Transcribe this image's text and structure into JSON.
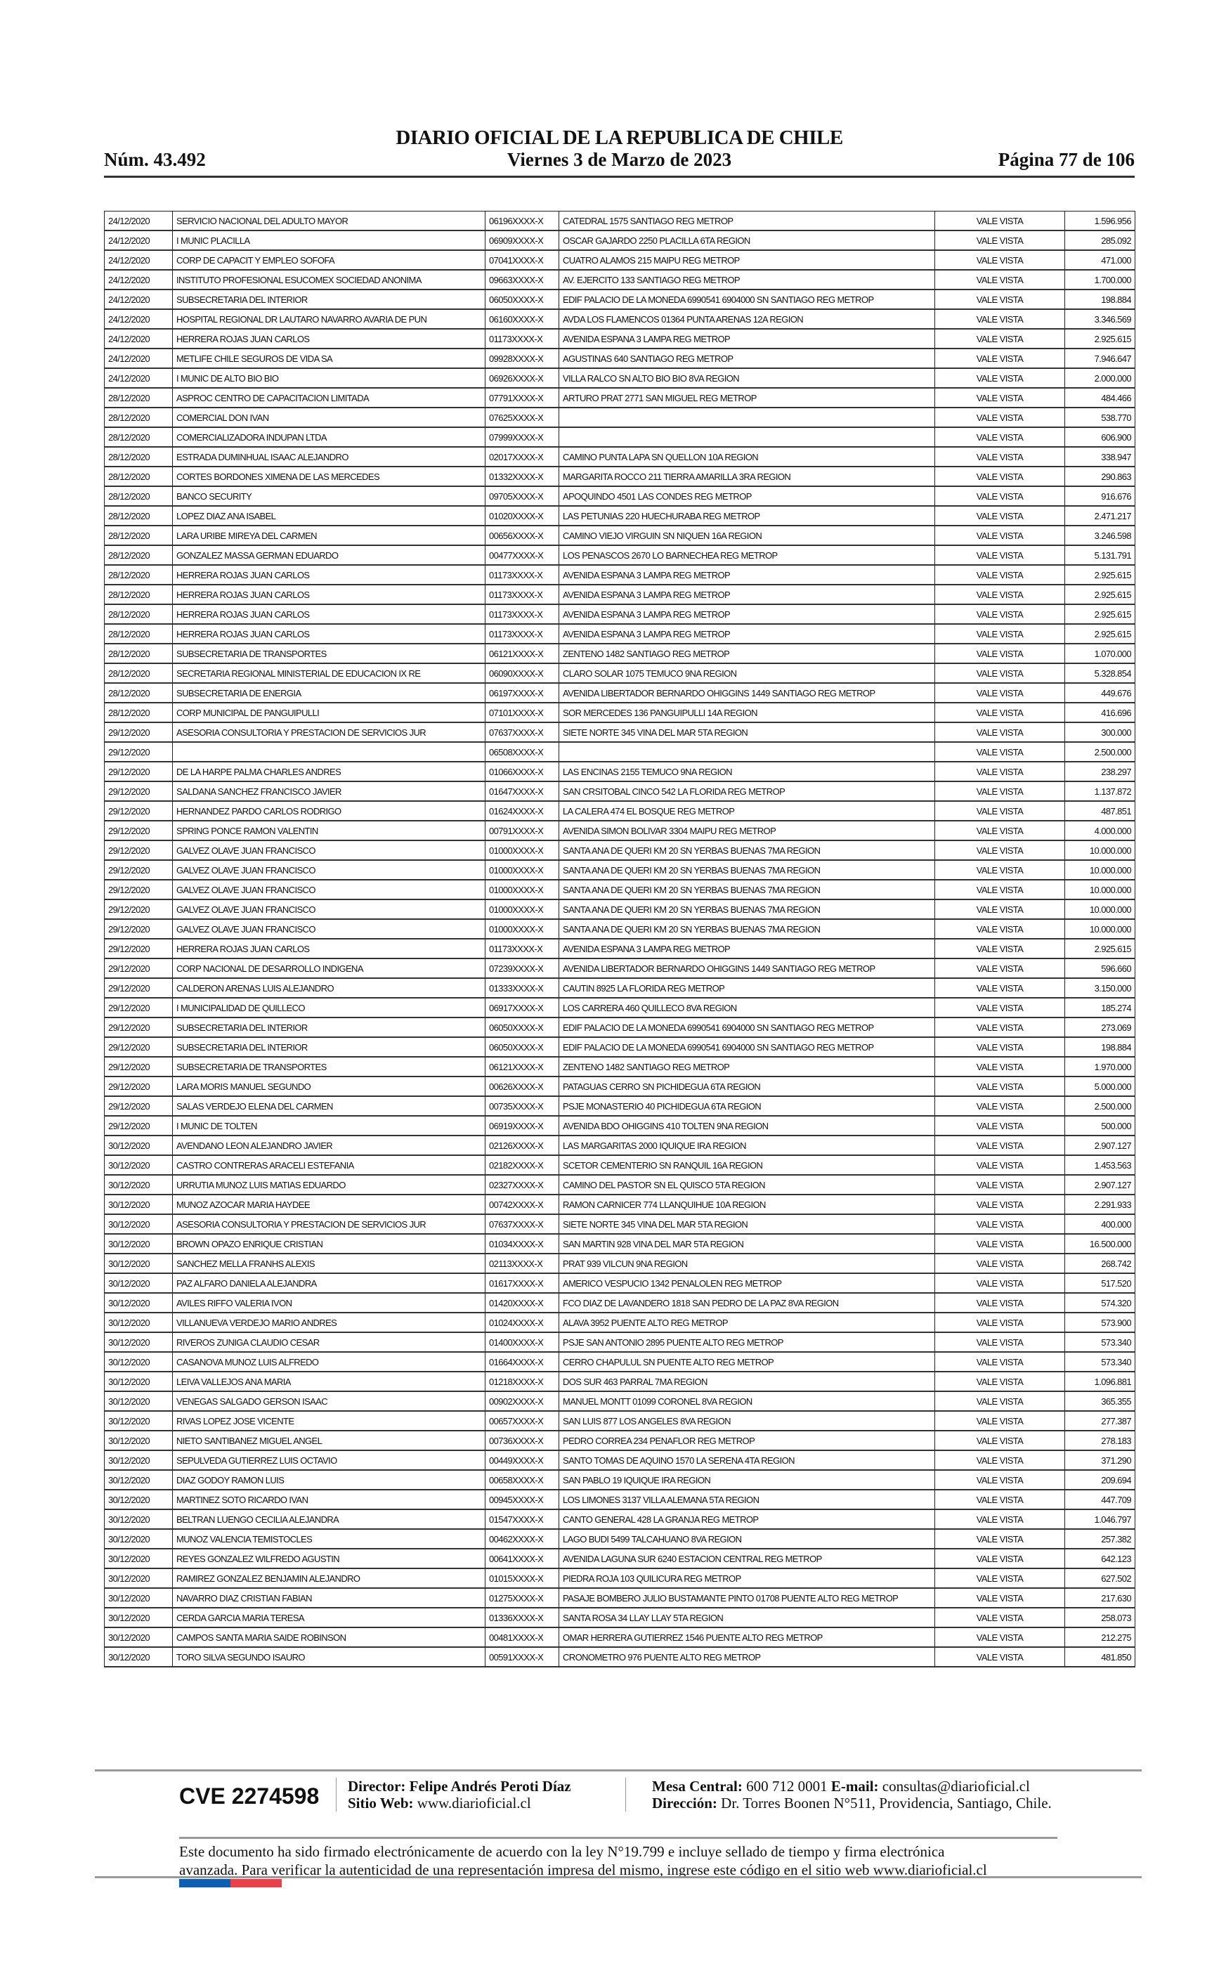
{
  "header": {
    "title": "DIARIO OFICIAL DE LA REPUBLICA DE CHILE",
    "number": "Núm. 43.492",
    "date": "Viernes 3 de Marzo de 2023",
    "page": "Página 77 de 106"
  },
  "table": {
    "rows": [
      [
        "24/12/2020",
        "SERVICIO NACIONAL DEL ADULTO MAYOR",
        "06196XXXX-X",
        "CATEDRAL 1575 SANTIAGO REG METROP",
        "VALE VISTA",
        "1.596.956"
      ],
      [
        "24/12/2020",
        "I MUNIC PLACILLA",
        "06909XXXX-X",
        "OSCAR GAJARDO 2250 PLACILLA 6TA REGION",
        "VALE VISTA",
        "285.092"
      ],
      [
        "24/12/2020",
        "CORP DE CAPACIT Y EMPLEO SOFOFA",
        "07041XXXX-X",
        "CUATRO ALAMOS 215 MAIPU REG METROP",
        "VALE VISTA",
        "471.000"
      ],
      [
        "24/12/2020",
        "INSTITUTO PROFESIONAL ESUCOMEX SOCIEDAD ANONIMA",
        "09663XXXX-X",
        "AV. EJERCITO 133 SANTIAGO REG METROP",
        "VALE VISTA",
        "1.700.000"
      ],
      [
        "24/12/2020",
        "SUBSECRETARIA DEL INTERIOR",
        "06050XXXX-X",
        "EDIF PALACIO DE LA MONEDA 6990541 6904000 SN SANTIAGO REG METROP",
        "VALE VISTA",
        "198.884"
      ],
      [
        "24/12/2020",
        "HOSPITAL REGIONAL DR LAUTARO NAVARRO AVARIA DE PUN",
        "06160XXXX-X",
        "AVDA LOS FLAMENCOS 01364 PUNTA ARENAS 12A REGION",
        "VALE VISTA",
        "3.346.569"
      ],
      [
        "24/12/2020",
        "HERRERA ROJAS JUAN CARLOS",
        "01173XXXX-X",
        "AVENIDA ESPANA 3 LAMPA REG METROP",
        "VALE VISTA",
        "2.925.615"
      ],
      [
        "24/12/2020",
        "METLIFE CHILE SEGUROS DE VIDA SA",
        "09928XXXX-X",
        "AGUSTINAS 640 SANTIAGO REG METROP",
        "VALE VISTA",
        "7.946.647"
      ],
      [
        "24/12/2020",
        "I MUNIC DE ALTO BIO BIO",
        "06926XXXX-X",
        "VILLA RALCO SN ALTO BIO BIO 8VA REGION",
        "VALE VISTA",
        "2.000.000"
      ],
      [
        "28/12/2020",
        "ASPROC CENTRO DE CAPACITACION LIMITADA",
        "07791XXXX-X",
        "ARTURO PRAT 2771 SAN MIGUEL REG METROP",
        "VALE VISTA",
        "484.466"
      ],
      [
        "28/12/2020",
        "COMERCIAL DON IVAN",
        "07625XXXX-X",
        "",
        "VALE VISTA",
        "538.770"
      ],
      [
        "28/12/2020",
        "COMERCIALIZADORA INDUPAN LTDA",
        "07999XXXX-X",
        "",
        "VALE VISTA",
        "606.900"
      ],
      [
        "28/12/2020",
        "ESTRADA DUMINHUAL ISAAC ALEJANDRO",
        "02017XXXX-X",
        "CAMINO PUNTA LAPA SN QUELLON 10A REGION",
        "VALE VISTA",
        "338.947"
      ],
      [
        "28/12/2020",
        "CORTES BORDONES XIMENA DE LAS MERCEDES",
        "01332XXXX-X",
        "MARGARITA ROCCO 211 TIERRA AMARILLA 3RA REGION",
        "VALE VISTA",
        "290.863"
      ],
      [
        "28/12/2020",
        "BANCO SECURITY",
        "09705XXXX-X",
        "APOQUINDO 4501 LAS CONDES REG METROP",
        "VALE VISTA",
        "916.676"
      ],
      [
        "28/12/2020",
        "LOPEZ DIAZ ANA ISABEL",
        "01020XXXX-X",
        "LAS PETUNIAS 220 HUECHURABA REG METROP",
        "VALE VISTA",
        "2.471.217"
      ],
      [
        "28/12/2020",
        "LARA URIBE MIREYA DEL CARMEN",
        "00656XXXX-X",
        "CAMINO VIEJO VIRGUIN SN NIQUEN 16A REGION",
        "VALE VISTA",
        "3.246.598"
      ],
      [
        "28/12/2020",
        "GONZALEZ MASSA GERMAN EDUARDO",
        "00477XXXX-X",
        "LOS PENASCOS 2670 LO BARNECHEA REG METROP",
        "VALE VISTA",
        "5.131.791"
      ],
      [
        "28/12/2020",
        "HERRERA ROJAS JUAN CARLOS",
        "01173XXXX-X",
        "AVENIDA ESPANA 3 LAMPA REG METROP",
        "VALE VISTA",
        "2.925.615"
      ],
      [
        "28/12/2020",
        "HERRERA ROJAS JUAN CARLOS",
        "01173XXXX-X",
        "AVENIDA ESPANA 3 LAMPA REG METROP",
        "VALE VISTA",
        "2.925.615"
      ],
      [
        "28/12/2020",
        "HERRERA ROJAS JUAN CARLOS",
        "01173XXXX-X",
        "AVENIDA ESPANA 3 LAMPA REG METROP",
        "VALE VISTA",
        "2.925.615"
      ],
      [
        "28/12/2020",
        "HERRERA ROJAS JUAN CARLOS",
        "01173XXXX-X",
        "AVENIDA ESPANA 3 LAMPA REG METROP",
        "VALE VISTA",
        "2.925.615"
      ],
      [
        "28/12/2020",
        "SUBSECRETARIA DE TRANSPORTES",
        "06121XXXX-X",
        "ZENTENO 1482 SANTIAGO REG METROP",
        "VALE VISTA",
        "1.070.000"
      ],
      [
        "28/12/2020",
        "SECRETARIA REGIONAL MINISTERIAL DE EDUCACION IX RE",
        "06090XXXX-X",
        "CLARO SOLAR 1075 TEMUCO 9NA REGION",
        "VALE VISTA",
        "5.328.854"
      ],
      [
        "28/12/2020",
        "SUBSECRETARIA DE ENERGIA",
        "06197XXXX-X",
        "AVENIDA LIBERTADOR BERNARDO OHIGGINS 1449 SANTIAGO REG METROP",
        "VALE VISTA",
        "449.676"
      ],
      [
        "28/12/2020",
        "CORP MUNICIPAL DE PANGUIPULLI",
        "07101XXXX-X",
        "SOR MERCEDES 136 PANGUIPULLI 14A REGION",
        "VALE VISTA",
        "416.696"
      ],
      [
        "29/12/2020",
        "ASESORIA CONSULTORIA Y PRESTACION DE SERVICIOS JUR",
        "07637XXXX-X",
        "SIETE NORTE 345 VINA DEL MAR 5TA REGION",
        "VALE VISTA",
        "300.000"
      ],
      [
        "29/12/2020",
        "",
        "06508XXXX-X",
        "",
        "VALE VISTA",
        "2.500.000"
      ],
      [
        "29/12/2020",
        "DE LA HARPE PALMA CHARLES ANDRES",
        "01066XXXX-X",
        "LAS ENCINAS 2155 TEMUCO 9NA REGION",
        "VALE VISTA",
        "238.297"
      ],
      [
        "29/12/2020",
        "SALDANA SANCHEZ FRANCISCO JAVIER",
        "01647XXXX-X",
        "SAN CRSITOBAL CINCO 542 LA FLORIDA REG METROP",
        "VALE VISTA",
        "1.137.872"
      ],
      [
        "29/12/2020",
        "HERNANDEZ PARDO CARLOS RODRIGO",
        "01624XXXX-X",
        "LA CALERA 474 EL BOSQUE REG METROP",
        "VALE VISTA",
        "487.851"
      ],
      [
        "29/12/2020",
        "SPRING PONCE RAMON VALENTIN",
        "00791XXXX-X",
        "AVENIDA SIMON BOLIVAR 3304 MAIPU REG METROP",
        "VALE VISTA",
        "4.000.000"
      ],
      [
        "29/12/2020",
        "GALVEZ OLAVE JUAN FRANCISCO",
        "01000XXXX-X",
        "SANTA ANA DE QUERI KM 20 SN YERBAS BUENAS 7MA REGION",
        "VALE VISTA",
        "10.000.000"
      ],
      [
        "29/12/2020",
        "GALVEZ OLAVE JUAN FRANCISCO",
        "01000XXXX-X",
        "SANTA ANA DE QUERI KM 20 SN YERBAS BUENAS 7MA REGION",
        "VALE VISTA",
        "10.000.000"
      ],
      [
        "29/12/2020",
        "GALVEZ OLAVE JUAN FRANCISCO",
        "01000XXXX-X",
        "SANTA ANA DE QUERI KM 20 SN YERBAS BUENAS 7MA REGION",
        "VALE VISTA",
        "10.000.000"
      ],
      [
        "29/12/2020",
        "GALVEZ OLAVE JUAN FRANCISCO",
        "01000XXXX-X",
        "SANTA ANA DE QUERI KM 20 SN YERBAS BUENAS 7MA REGION",
        "VALE VISTA",
        "10.000.000"
      ],
      [
        "29/12/2020",
        "GALVEZ OLAVE JUAN FRANCISCO",
        "01000XXXX-X",
        "SANTA ANA DE QUERI KM 20 SN YERBAS BUENAS 7MA REGION",
        "VALE VISTA",
        "10.000.000"
      ],
      [
        "29/12/2020",
        "HERRERA ROJAS JUAN CARLOS",
        "01173XXXX-X",
        "AVENIDA ESPANA 3 LAMPA REG METROP",
        "VALE VISTA",
        "2.925.615"
      ],
      [
        "29/12/2020",
        "CORP NACIONAL DE DESARROLLO INDIGENA",
        "07239XXXX-X",
        "AVENIDA LIBERTADOR BERNARDO OHIGGINS 1449 SANTIAGO REG METROP",
        "VALE VISTA",
        "596.660"
      ],
      [
        "29/12/2020",
        "CALDERON ARENAS LUIS ALEJANDRO",
        "01333XXXX-X",
        "CAUTIN 8925 LA FLORIDA REG METROP",
        "VALE VISTA",
        "3.150.000"
      ],
      [
        "29/12/2020",
        "I MUNICIPALIDAD DE QUILLECO",
        "06917XXXX-X",
        "LOS CARRERA 460 QUILLECO 8VA REGION",
        "VALE VISTA",
        "185.274"
      ],
      [
        "29/12/2020",
        "SUBSECRETARIA DEL INTERIOR",
        "06050XXXX-X",
        "EDIF PALACIO DE LA MONEDA 6990541 6904000 SN SANTIAGO REG METROP",
        "VALE VISTA",
        "273.069"
      ],
      [
        "29/12/2020",
        "SUBSECRETARIA DEL INTERIOR",
        "06050XXXX-X",
        "EDIF PALACIO DE LA MONEDA 6990541 6904000 SN SANTIAGO REG METROP",
        "VALE VISTA",
        "198.884"
      ],
      [
        "29/12/2020",
        "SUBSECRETARIA DE TRANSPORTES",
        "06121XXXX-X",
        "ZENTENO 1482 SANTIAGO REG METROP",
        "VALE VISTA",
        "1.970.000"
      ],
      [
        "29/12/2020",
        "LARA MORIS MANUEL SEGUNDO",
        "00626XXXX-X",
        "PATAGUAS CERRO SN PICHIDEGUA 6TA REGION",
        "VALE VISTA",
        "5.000.000"
      ],
      [
        "29/12/2020",
        "SALAS VERDEJO ELENA DEL CARMEN",
        "00735XXXX-X",
        "PSJE MONASTERIO 40 PICHIDEGUA 6TA REGION",
        "VALE VISTA",
        "2.500.000"
      ],
      [
        "29/12/2020",
        "I MUNIC DE TOLTEN",
        "06919XXXX-X",
        "AVENIDA BDO OHIGGINS 410 TOLTEN 9NA REGION",
        "VALE VISTA",
        "500.000"
      ],
      [
        "30/12/2020",
        "AVENDANO LEON ALEJANDRO JAVIER",
        "02126XXXX-X",
        "LAS MARGARITAS 2000 IQUIQUE IRA REGION",
        "VALE VISTA",
        "2.907.127"
      ],
      [
        "30/12/2020",
        "CASTRO CONTRERAS ARACELI ESTEFANIA",
        "02182XXXX-X",
        "SCETOR CEMENTERIO SN RANQUIL 16A REGION",
        "VALE VISTA",
        "1.453.563"
      ],
      [
        "30/12/2020",
        "URRUTIA MUNOZ LUIS MATIAS EDUARDO",
        "02327XXXX-X",
        "CAMINO DEL PASTOR SN EL QUISCO 5TA REGION",
        "VALE VISTA",
        "2.907.127"
      ],
      [
        "30/12/2020",
        "MUNOZ AZOCAR MARIA HAYDEE",
        "00742XXXX-X",
        "RAMON CARNICER 774 LLANQUIHUE 10A REGION",
        "VALE VISTA",
        "2.291.933"
      ],
      [
        "30/12/2020",
        "ASESORIA CONSULTORIA Y PRESTACION DE SERVICIOS JUR",
        "07637XXXX-X",
        "SIETE NORTE 345 VINA DEL MAR 5TA REGION",
        "VALE VISTA",
        "400.000"
      ],
      [
        "30/12/2020",
        "BROWN OPAZO ENRIQUE CRISTIAN",
        "01034XXXX-X",
        "SAN MARTIN 928 VINA DEL MAR 5TA REGION",
        "VALE VISTA",
        "16.500.000"
      ],
      [
        "30/12/2020",
        "SANCHEZ MELLA FRANHS ALEXIS",
        "02113XXXX-X",
        "PRAT 939 VILCUN 9NA REGION",
        "VALE VISTA",
        "268.742"
      ],
      [
        "30/12/2020",
        "PAZ ALFARO DANIELA ALEJANDRA",
        "01617XXXX-X",
        "AMERICO VESPUCIO 1342 PENALOLEN REG METROP",
        "VALE VISTA",
        "517.520"
      ],
      [
        "30/12/2020",
        "AVILES RIFFO VALERIA IVON",
        "01420XXXX-X",
        "FCO DIAZ DE LAVANDERO 1818 SAN PEDRO DE LA PAZ 8VA REGION",
        "VALE VISTA",
        "574.320"
      ],
      [
        "30/12/2020",
        "VILLANUEVA VERDEJO MARIO ANDRES",
        "01024XXXX-X",
        "ALAVA 3952 PUENTE ALTO REG METROP",
        "VALE VISTA",
        "573.900"
      ],
      [
        "30/12/2020",
        "RIVEROS ZUNIGA CLAUDIO CESAR",
        "01400XXXX-X",
        "PSJE SAN ANTONIO 2895 PUENTE ALTO REG METROP",
        "VALE VISTA",
        "573.340"
      ],
      [
        "30/12/2020",
        "CASANOVA MUNOZ LUIS ALFREDO",
        "01664XXXX-X",
        "CERRO CHAPULUL SN PUENTE ALTO REG METROP",
        "VALE VISTA",
        "573.340"
      ],
      [
        "30/12/2020",
        "LEIVA VALLEJOS ANA MARIA",
        "01218XXXX-X",
        "DOS SUR 463 PARRAL 7MA REGION",
        "VALE VISTA",
        "1.096.881"
      ],
      [
        "30/12/2020",
        "VENEGAS SALGADO GERSON ISAAC",
        "00902XXXX-X",
        "MANUEL MONTT 01099 CORONEL 8VA REGION",
        "VALE VISTA",
        "365.355"
      ],
      [
        "30/12/2020",
        "RIVAS LOPEZ JOSE VICENTE",
        "00657XXXX-X",
        "SAN LUIS 877 LOS ANGELES 8VA REGION",
        "VALE VISTA",
        "277.387"
      ],
      [
        "30/12/2020",
        "NIETO SANTIBANEZ MIGUEL ANGEL",
        "00736XXXX-X",
        "PEDRO CORREA 234 PENAFLOR REG METROP",
        "VALE VISTA",
        "278.183"
      ],
      [
        "30/12/2020",
        "SEPULVEDA GUTIERREZ LUIS OCTAVIO",
        "00449XXXX-X",
        "SANTO TOMAS DE AQUINO 1570 LA SERENA 4TA REGION",
        "VALE VISTA",
        "371.290"
      ],
      [
        "30/12/2020",
        "DIAZ GODOY RAMON LUIS",
        "00658XXXX-X",
        "SAN PABLO 19 IQUIQUE IRA REGION",
        "VALE VISTA",
        "209.694"
      ],
      [
        "30/12/2020",
        "MARTINEZ SOTO RICARDO IVAN",
        "00945XXXX-X",
        "LOS LIMONES 3137 VILLA ALEMANA 5TA REGION",
        "VALE VISTA",
        "447.709"
      ],
      [
        "30/12/2020",
        "BELTRAN LUENGO CECILIA ALEJANDRA",
        "01547XXXX-X",
        "CANTO GENERAL 428 LA GRANJA REG METROP",
        "VALE VISTA",
        "1.046.797"
      ],
      [
        "30/12/2020",
        "MUNOZ VALENCIA TEMISTOCLES",
        "00462XXXX-X",
        "LAGO BUDI 5499 TALCAHUANO 8VA REGION",
        "VALE VISTA",
        "257.382"
      ],
      [
        "30/12/2020",
        "REYES GONZALEZ WILFREDO AGUSTIN",
        "00641XXXX-X",
        "AVENIDA LAGUNA SUR 6240 ESTACION CENTRAL REG METROP",
        "VALE VISTA",
        "642.123"
      ],
      [
        "30/12/2020",
        "RAMIREZ GONZALEZ BENJAMIN ALEJANDRO",
        "01015XXXX-X",
        "PIEDRA ROJA 103 QUILICURA REG METROP",
        "VALE VISTA",
        "627.502"
      ],
      [
        "30/12/2020",
        "NAVARRO DIAZ CRISTIAN FABIAN",
        "01275XXXX-X",
        "PASAJE BOMBERO JULIO BUSTAMANTE PINTO 01708 PUENTE ALTO REG METROP",
        "VALE VISTA",
        "217.630"
      ],
      [
        "30/12/2020",
        "CERDA GARCIA MARIA TERESA",
        "01336XXXX-X",
        "SANTA ROSA 34 LLAY LLAY 5TA REGION",
        "VALE VISTA",
        "258.073"
      ],
      [
        "30/12/2020",
        "CAMPOS SANTA MARIA SAIDE ROBINSON",
        "00481XXXX-X",
        "OMAR HERRERA GUTIERREZ 1546 PUENTE ALTO REG METROP",
        "VALE VISTA",
        "212.275"
      ],
      [
        "30/12/2020",
        "TORO SILVA SEGUNDO ISAURO",
        "00591XXXX-X",
        "CRONOMETRO 976 PUENTE ALTO REG METROP",
        "VALE VISTA",
        "481.850"
      ]
    ]
  },
  "footer": {
    "cve": "CVE 2274598",
    "director_label": "Director:",
    "director": "Felipe Andrés Peroti Díaz",
    "web_label": "Sitio Web:",
    "web": "www.diarioficial.cl",
    "mesa_label": "Mesa Central:",
    "mesa": "600 712 0001",
    "email_label": "E-mail:",
    "email": "consultas@diarioficial.cl",
    "address_label": "Dirección:",
    "address": "Dr. Torres Boonen N°511, Providencia, Santiago, Chile.",
    "legal_line1": "Este documento ha sido firmado electrónicamente de acuerdo con la ley N°19.799 e incluye sellado de tiempo y firma electrónica",
    "legal_line2": "avanzada. Para verificar la autenticidad de una representación impresa del mismo, ingrese este código en el sitio web www.diarioficial.cl",
    "flag_colors": [
      "#0f5fb0",
      "#e8414b"
    ]
  }
}
